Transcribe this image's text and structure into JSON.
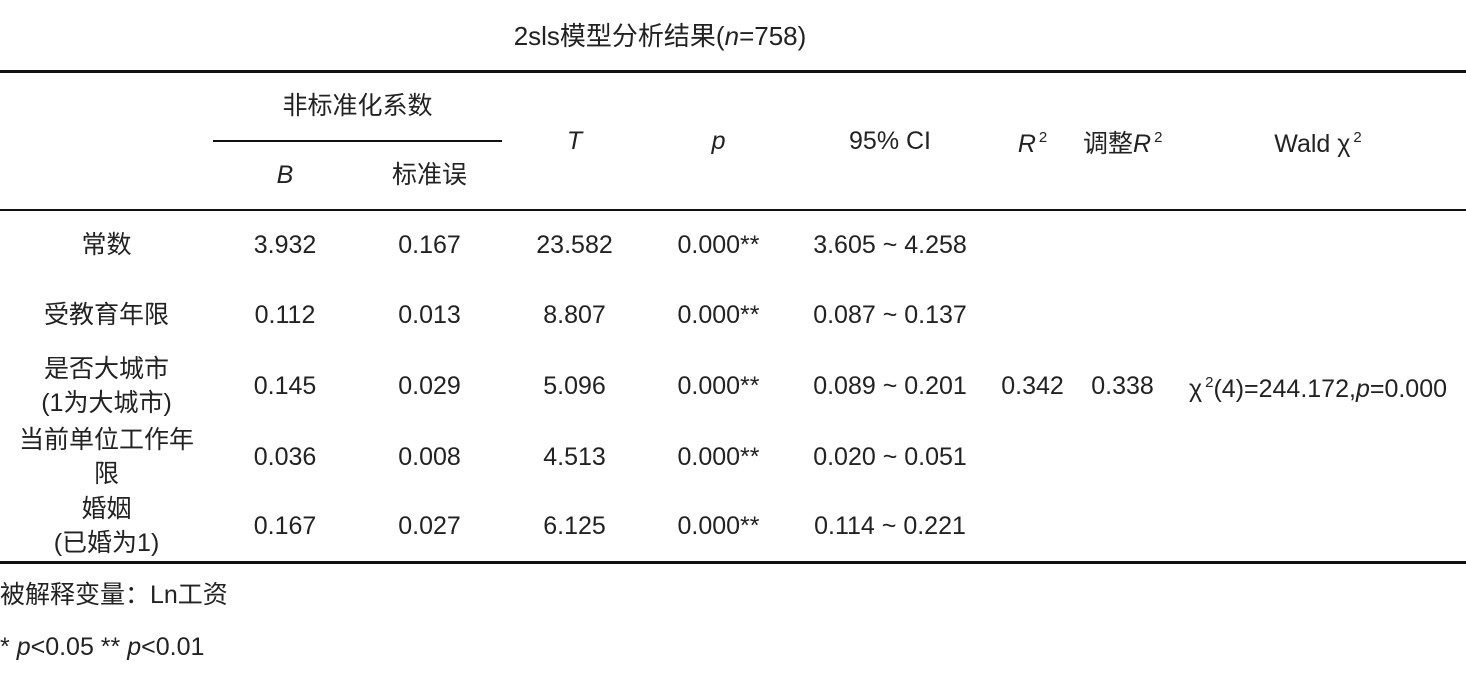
{
  "title": {
    "prefix": "2sls模型分析结果(",
    "italic": "n",
    "suffix": "=758)"
  },
  "table": {
    "header": {
      "group": "非标准化系数",
      "b": "B",
      "se": "标准误",
      "t": "T",
      "p": "p",
      "ci": "95% CI",
      "r2": {
        "symbol": "R",
        "sup": "2"
      },
      "adj_r2": {
        "prefix": "调整",
        "symbol": "R",
        "sup": "2"
      },
      "wald": {
        "prefix": "Wald χ",
        "sup": "2"
      }
    },
    "rows": [
      [
        "常数",
        "3.932",
        "0.167",
        "23.582",
        "0.000**",
        "3.605 ~ 4.258"
      ],
      [
        "受教育年限",
        "0.112",
        "0.013",
        "8.807",
        "0.000**",
        "0.087 ~ 0.137"
      ],
      [
        "是否大城市\n(1为大城市)",
        "0.145",
        "0.029",
        "5.096",
        "0.000**",
        "0.089 ~ 0.201"
      ],
      [
        "当前单位工作年限",
        "0.036",
        "0.008",
        "4.513",
        "0.000**",
        "0.020 ~ 0.051"
      ],
      [
        "婚姻\n(已婚为1)",
        "0.167",
        "0.027",
        "6.125",
        "0.000**",
        "0.114 ~ 0.221"
      ]
    ],
    "fit": {
      "r2": "0.342",
      "adj_r2": "0.338",
      "wald": {
        "chi": "χ",
        "sup": "2",
        "a": "(4)=244.172,",
        "p": "p",
        "b": "=0.000"
      }
    }
  },
  "notes": {
    "dependent": "被解释变量：Ln工资",
    "significance": [
      "*",
      "p",
      "<0.05 **",
      "p",
      "<0.01"
    ]
  }
}
